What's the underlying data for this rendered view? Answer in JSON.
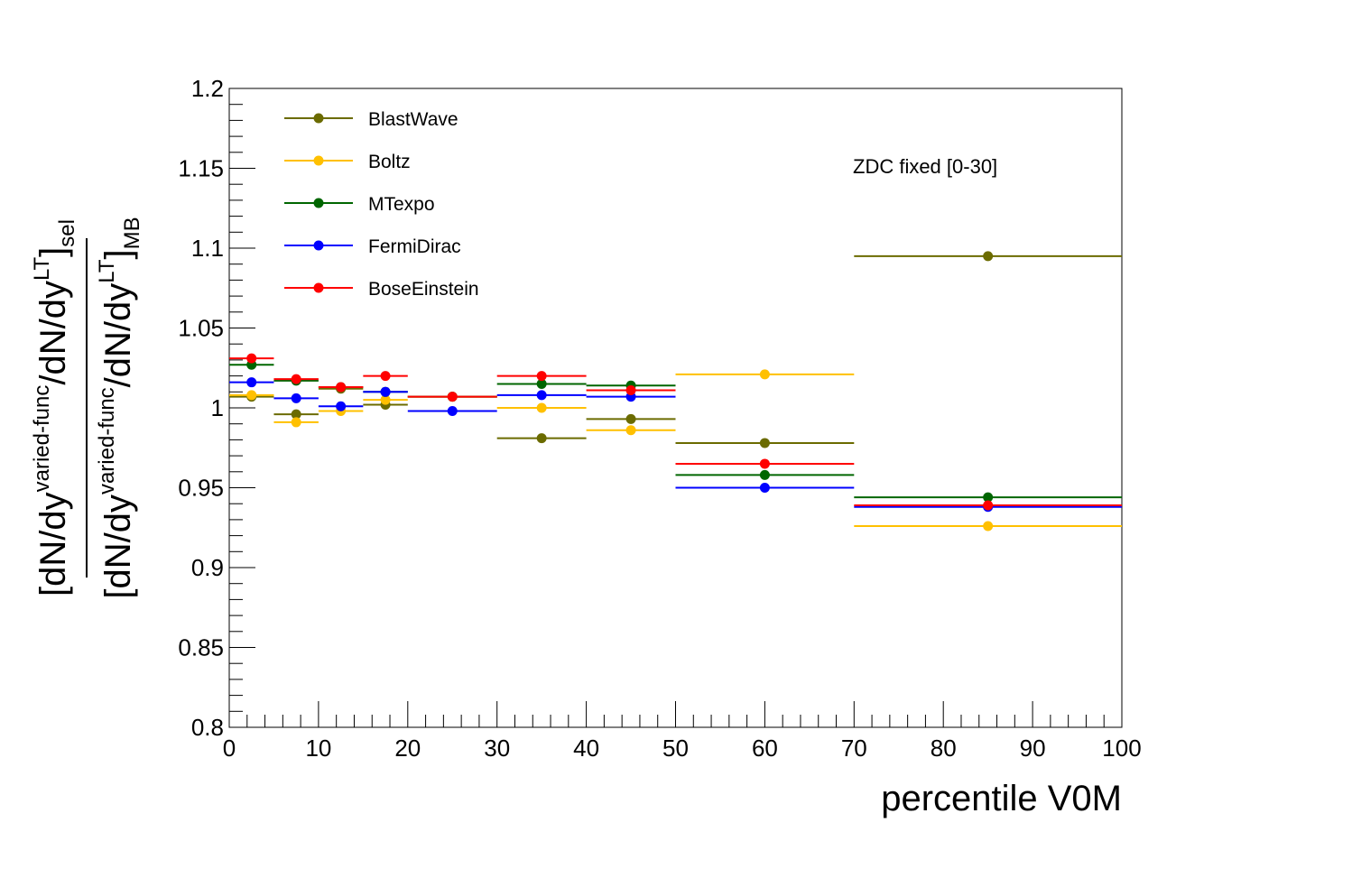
{
  "chart_data": {
    "type": "scatter",
    "xlabel": "percentile V0M",
    "ylabel": {
      "numerator": [
        "[dN/dy",
        "varied-func",
        "/dN/dy",
        "LT",
        "]",
        "sel"
      ],
      "denominator": [
        "[dN/dy",
        "varied-func",
        "/dN/dy",
        "LT",
        "]",
        "MB"
      ]
    },
    "annotation": "ZDC fixed [0-30]",
    "xlim": [
      0,
      100
    ],
    "ylim": [
      0.8,
      1.2
    ],
    "x_ticks": [
      "0",
      "10",
      "20",
      "30",
      "40",
      "50",
      "60",
      "70",
      "80",
      "90",
      "100"
    ],
    "y_ticks": [
      "0.8",
      "0.85",
      "0.9",
      "0.95",
      "1",
      "1.05",
      "1.1",
      "1.15",
      "1.2"
    ],
    "bins": [
      [
        0,
        5
      ],
      [
        5,
        10
      ],
      [
        10,
        15
      ],
      [
        15,
        20
      ],
      [
        20,
        30
      ],
      [
        30,
        40
      ],
      [
        40,
        50
      ],
      [
        50,
        70
      ],
      [
        70,
        100
      ]
    ],
    "legend_position": "top-left",
    "series": [
      {
        "name": "BlastWave",
        "color": "#6b6b00",
        "values": [
          1.007,
          0.996,
          1.012,
          1.002,
          1.007,
          0.981,
          0.993,
          0.978,
          1.095
        ]
      },
      {
        "name": "Boltz",
        "color": "#ffc000",
        "values": [
          1.008,
          0.991,
          0.998,
          1.005,
          1.007,
          1.0,
          0.986,
          1.021,
          0.926
        ]
      },
      {
        "name": "MTexpo",
        "color": "#006600",
        "values": [
          1.027,
          1.017,
          1.013,
          1.01,
          1.007,
          1.015,
          1.014,
          0.958,
          0.944
        ]
      },
      {
        "name": "FermiDirac",
        "color": "#0000ff",
        "values": [
          1.016,
          1.006,
          1.001,
          1.01,
          0.998,
          1.008,
          1.007,
          0.95,
          0.938
        ]
      },
      {
        "name": "BoseEinstein",
        "color": "#ff0000",
        "values": [
          1.031,
          1.018,
          1.013,
          1.02,
          1.007,
          1.02,
          1.011,
          0.965,
          0.939
        ]
      }
    ]
  }
}
